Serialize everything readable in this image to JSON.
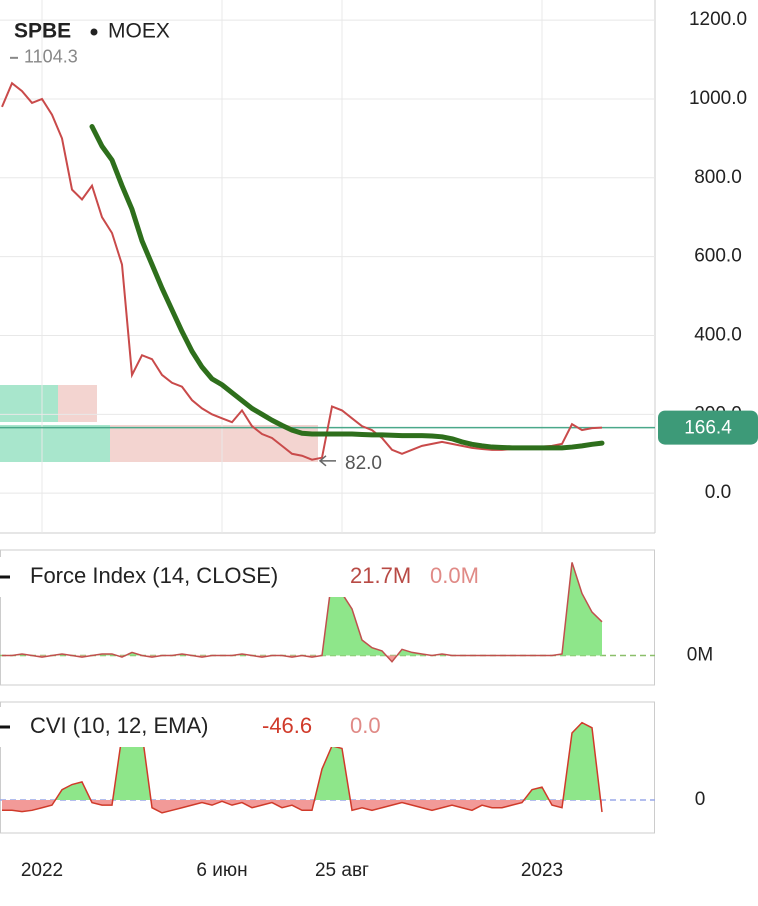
{
  "chart_data": [
    {
      "type": "line",
      "title": "SPBE",
      "subtitle": "MOEX",
      "categories": [
        null,
        null,
        null,
        null,
        "2022",
        null,
        null,
        null,
        null,
        null,
        null,
        null,
        null,
        null,
        null,
        null,
        null,
        null,
        null,
        null,
        null,
        null,
        "6 июн",
        null,
        null,
        null,
        null,
        null,
        null,
        null,
        null,
        null,
        null,
        null,
        "25 авг",
        null,
        null,
        null,
        null,
        null,
        null,
        null,
        null,
        null,
        null,
        null,
        null,
        null,
        null,
        null,
        null,
        null,
        null,
        null,
        "2023",
        null,
        null,
        null,
        null,
        null,
        null
      ],
      "series": [
        {
          "color": "#c94a4a",
          "values": [
            980,
            1040,
            1020,
            990,
            1000,
            960,
            900,
            770,
            745,
            780,
            700,
            660,
            580,
            300,
            350,
            340,
            300,
            280,
            270,
            236,
            215,
            200,
            190,
            180,
            210,
            170,
            150,
            140,
            120,
            100,
            95,
            85,
            90,
            220,
            210,
            190,
            170,
            160,
            140,
            110,
            100,
            110,
            120,
            125,
            130,
            125,
            120,
            115,
            112,
            110,
            110,
            112,
            115,
            115,
            118,
            120,
            125,
            175,
            160,
            165,
            166.4
          ]
        },
        {
          "color": "#2e6f1c",
          "values": [
            null,
            null,
            null,
            null,
            null,
            null,
            null,
            null,
            null,
            930,
            880,
            845,
            780,
            720,
            640,
            580,
            520,
            465,
            410,
            360,
            320,
            290,
            275,
            255,
            235,
            215,
            200,
            185,
            172,
            160,
            152,
            150,
            150,
            150,
            150,
            150,
            149,
            148,
            148,
            147,
            146,
            146,
            146,
            145,
            143,
            138,
            130,
            124,
            120,
            117,
            116,
            115,
            115,
            115,
            115,
            115,
            115,
            117,
            120,
            124,
            127
          ]
        }
      ],
      "ylim": [
        -101,
        1251
      ],
      "yticks": [
        {
          "value": 0,
          "label": "0.0"
        },
        {
          "value": 200,
          "label": "200.0"
        },
        {
          "value": 400,
          "label": "400.0"
        },
        {
          "value": 600,
          "label": "600.0"
        },
        {
          "value": 800,
          "label": "800.0"
        },
        {
          "value": 1000,
          "label": "1000.0"
        },
        {
          "value": 1200,
          "label": "1200.0"
        }
      ],
      "grid": true,
      "high": 1104.3,
      "low": {
        "value": 82,
        "label": "82.0"
      },
      "last": 166.4
    },
    {
      "type": "area",
      "title": "Force Index (14, CLOSE)",
      "legend_values": [
        {
          "value": 21.7,
          "label": "21.7M"
        },
        {
          "value": 0,
          "label": "0.0M"
        }
      ],
      "values": [
        0,
        0,
        1,
        0,
        -1,
        0,
        1,
        0,
        -1,
        0,
        1,
        1,
        -1,
        2,
        0,
        -1,
        0,
        0,
        1,
        0,
        -1,
        0,
        0,
        0,
        1,
        0,
        -1,
        0,
        0,
        -1,
        0,
        -1,
        0,
        50,
        40,
        30,
        10,
        5,
        3,
        -4,
        4,
        2,
        1,
        0,
        1,
        0,
        0,
        0,
        0,
        0,
        0,
        0,
        0,
        0,
        0,
        0,
        1,
        60,
        40,
        28,
        21.7
      ],
      "ylim": [
        -19,
        68
      ],
      "yticks": [
        {
          "value": 0,
          "label": "0M"
        }
      ],
      "color": "#c0504d"
    },
    {
      "type": "area",
      "title": "CVI (10, 12, EMA)",
      "legend_values": [
        -46.6,
        {
          "value": 0,
          "label": "0.0"
        }
      ],
      "values": [
        -40,
        -40,
        -45,
        -40,
        -30,
        -20,
        40,
        60,
        70,
        -10,
        -20,
        -20,
        250,
        280,
        260,
        -30,
        -50,
        -40,
        -30,
        -20,
        -10,
        -20,
        -5,
        -20,
        -10,
        -30,
        -20,
        -10,
        -30,
        -20,
        -40,
        -40,
        120,
        210,
        200,
        -40,
        -30,
        -40,
        -30,
        -20,
        -10,
        -20,
        -30,
        -40,
        -30,
        -20,
        -30,
        -40,
        -20,
        -30,
        -30,
        -20,
        -10,
        40,
        50,
        -20,
        -30,
        260,
        300,
        280,
        -46.6
      ],
      "ylim": [
        -128,
        380
      ],
      "yticks": [
        0
      ],
      "color": "#d03a2a"
    }
  ]
}
